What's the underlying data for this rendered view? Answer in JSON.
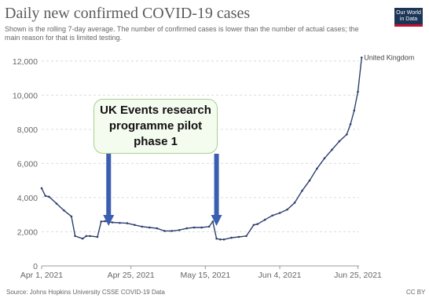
{
  "header": {
    "title": "Daily new confirmed COVID-19 cases",
    "subtitle": "Shown is the rolling 7-day average. The number of confirmed cases is lower than the number of actual cases; the main reason for that is limited testing.",
    "logo_text": "Our World in Data"
  },
  "footer": {
    "source": "Source: Johns Hopkins University CSSE COVID-19 Data",
    "license": "CC BY"
  },
  "annotation": {
    "text": "UK Events research\nprogramme pilot\nphase 1",
    "arrow_dates": [
      "2021-04-19",
      "2021-05-18"
    ],
    "arrow_color": "#3a5fb0"
  },
  "chart_data": {
    "type": "line",
    "xlim": [
      "2021-04-01",
      "2021-06-27"
    ],
    "ylim": [
      0,
      13000
    ],
    "y_ticks": [
      0,
      2000,
      4000,
      6000,
      8000,
      10000,
      12000
    ],
    "y_tick_labels": [
      "0",
      "2,000",
      "4,000",
      "6,000",
      "8,000",
      "10,000",
      "12,000"
    ],
    "x_ticks": [
      {
        "date": "2021-04-01",
        "label": "Apr 1, 2021"
      },
      {
        "date": "2021-04-25",
        "label": "Apr 25, 2021"
      },
      {
        "date": "2021-05-15",
        "label": "May 15, 2021"
      },
      {
        "date": "2021-06-04",
        "label": "Jun 4, 2021"
      },
      {
        "date": "2021-06-25",
        "label": "Jun 25, 2021"
      }
    ],
    "grid": "horizontal dashed",
    "series": [
      {
        "name": "United Kingdom",
        "color": "#2e3f6e",
        "x": [
          "2021-04-01",
          "2021-04-02",
          "2021-04-03",
          "2021-04-05",
          "2021-04-07",
          "2021-04-09",
          "2021-04-10",
          "2021-04-12",
          "2021-04-13",
          "2021-04-14",
          "2021-04-16",
          "2021-04-17",
          "2021-04-18",
          "2021-04-19",
          "2021-04-20",
          "2021-04-22",
          "2021-04-24",
          "2021-04-26",
          "2021-04-28",
          "2021-04-30",
          "2021-05-02",
          "2021-05-04",
          "2021-05-06",
          "2021-05-08",
          "2021-05-10",
          "2021-05-12",
          "2021-05-14",
          "2021-05-16",
          "2021-05-17",
          "2021-05-18",
          "2021-05-19",
          "2021-05-20",
          "2021-05-22",
          "2021-05-24",
          "2021-05-26",
          "2021-05-28",
          "2021-05-29",
          "2021-05-31",
          "2021-06-02",
          "2021-06-04",
          "2021-06-06",
          "2021-06-08",
          "2021-06-10",
          "2021-06-12",
          "2021-06-14",
          "2021-06-16",
          "2021-06-18",
          "2021-06-20",
          "2021-06-22",
          "2021-06-23",
          "2021-06-24",
          "2021-06-25",
          "2021-06-26"
        ],
        "y": [
          4550,
          4100,
          4050,
          3650,
          3250,
          2900,
          1750,
          1600,
          1750,
          1750,
          1700,
          2600,
          2620,
          2580,
          2550,
          2520,
          2500,
          2400,
          2300,
          2250,
          2200,
          2050,
          2050,
          2100,
          2200,
          2250,
          2250,
          2300,
          2600,
          1600,
          1550,
          1550,
          1650,
          1700,
          1750,
          2400,
          2450,
          2700,
          2950,
          3100,
          3300,
          3700,
          4400,
          5000,
          5700,
          6300,
          6800,
          7300,
          7700,
          8300,
          9100,
          10200,
          12200
        ]
      }
    ]
  }
}
